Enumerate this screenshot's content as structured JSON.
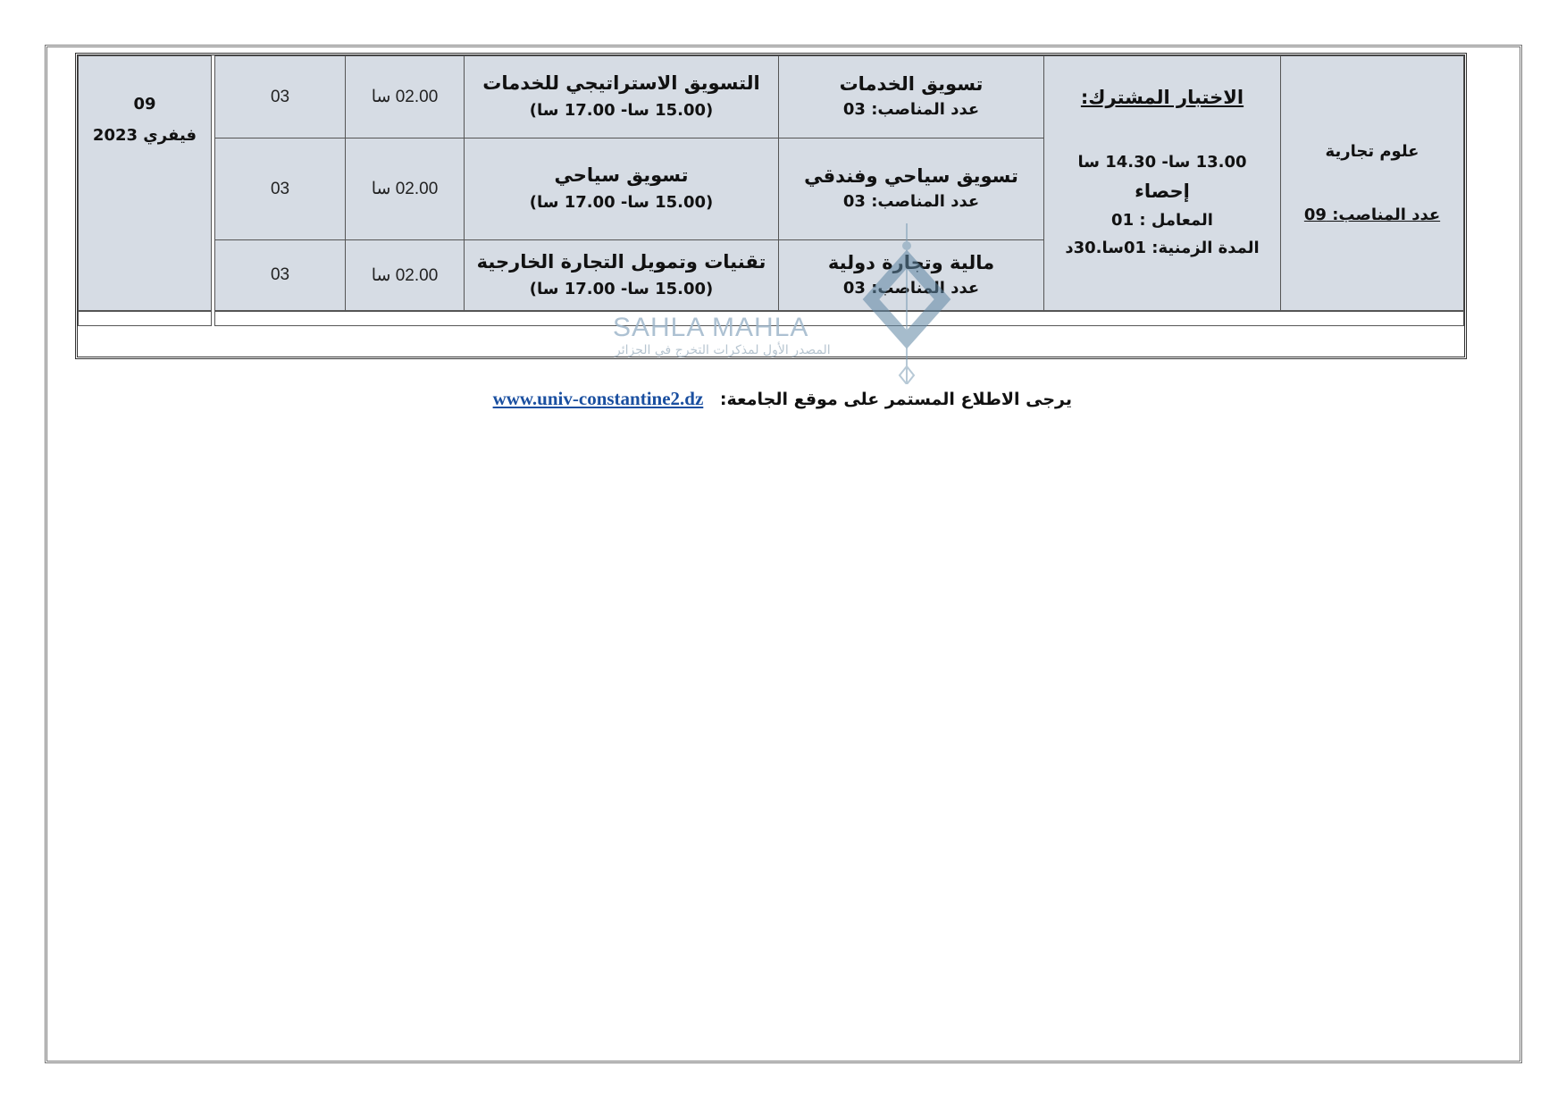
{
  "table": {
    "field": {
      "name": "علوم تجارية",
      "positions": "عدد المناصب: 09"
    },
    "common_exam": {
      "title": "الاختبار المشترك:",
      "time": "13.00 سا- 14.30 سا",
      "subject": "إحصاء",
      "coefficient": "المعامل : 01",
      "duration": "المدة الزمنية: 01سا.30د"
    },
    "rows": [
      {
        "specialty": "تسويق الخدمات",
        "positions": "عدد المناصب: 03",
        "subject": "التسويق الاستراتيجي للخدمات",
        "time": "(15.00 سا- 17.00 سا)",
        "duration": "02.00 سا",
        "coefficient": "03"
      },
      {
        "specialty": "تسويق سياحي وفندقي",
        "positions": "عدد المناصب: 03",
        "subject": "تسويق سياحي",
        "time": "(15.00 سا- 17.00 سا)",
        "duration": "02.00 سا",
        "coefficient": "03"
      },
      {
        "specialty": "مالية وتجارة دولية",
        "positions": "عدد المناصب: 03",
        "subject": "تقنيات وتمويل التجارة الخارجية",
        "time": "(15.00 سا- 17.00 سا)",
        "duration": "02.00 سا",
        "coefficient": "03"
      }
    ],
    "date": {
      "day": "09",
      "month_year": "فيفري 2023"
    }
  },
  "watermark": {
    "brand": "SAHLA MAHLA",
    "tagline": "المصدر الأول لمذكرات التخرج في الجزائر"
  },
  "footer": {
    "note": "يرجى الاطلاع المستمر على موقع الجامعة:",
    "link": "www.univ-constantine2.dz"
  },
  "colors": {
    "cell_bg": "#d6dce4",
    "link": "#1a4fa0"
  }
}
